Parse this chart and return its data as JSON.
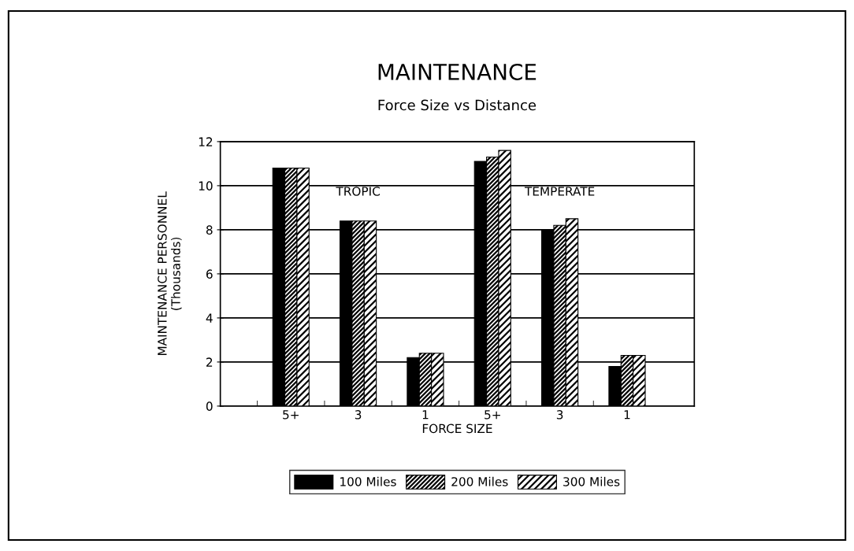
{
  "chart_data": {
    "type": "bar",
    "title": "MAINTENANCE",
    "subtitle": "Force Size vs Distance",
    "xlabel": "FORCE SIZE",
    "ylabel": "MAINTENANCE PERSONNEL\n(Thousands)",
    "categories": [
      "5+",
      "3",
      "1",
      "5+",
      "3",
      "1"
    ],
    "series": [
      {
        "name": "100 Miles",
        "color": "#000000",
        "values": [
          10.8,
          8.4,
          2.2,
          11.1,
          8.0,
          1.8
        ]
      },
      {
        "name": "200 Miles",
        "color": "#000000",
        "values": [
          10.8,
          8.4,
          2.4,
          11.3,
          8.2,
          2.3
        ]
      },
      {
        "name": "300 Miles",
        "color": "#000000",
        "values": [
          10.8,
          8.4,
          2.4,
          11.6,
          8.5,
          2.3
        ]
      }
    ],
    "annotations": [
      "TROPIC",
      "TEMPERATE"
    ],
    "ylim": [
      0,
      12
    ],
    "yticks": [
      0,
      2,
      4,
      6,
      8,
      10,
      12
    ],
    "grid": "y",
    "legend": "bottom"
  }
}
